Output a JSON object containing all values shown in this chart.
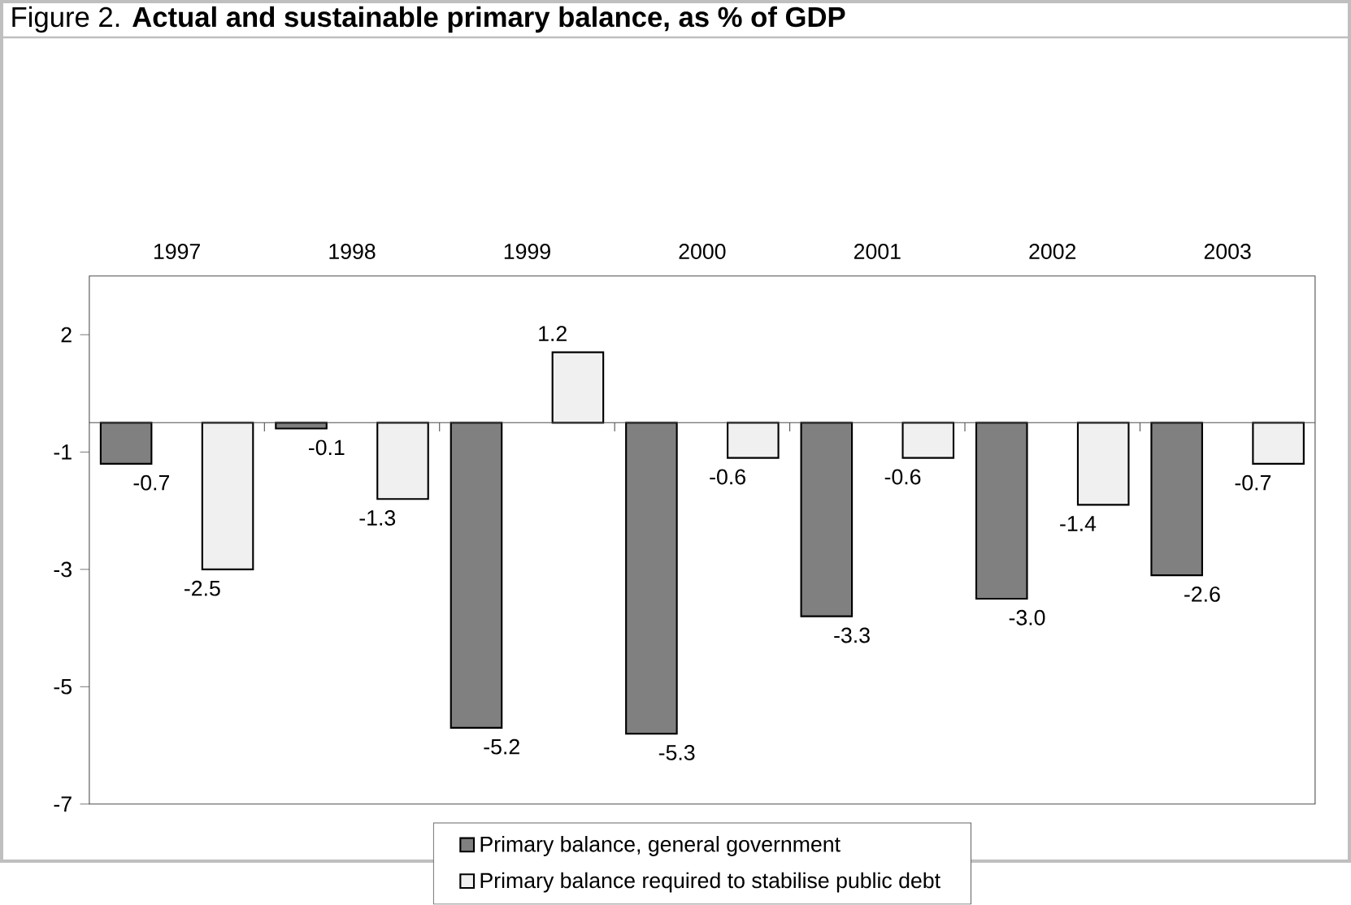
{
  "chart_data": {
    "type": "bar",
    "title": "Figure 2. **Actual and sustainable primary balance, as % of GDP**",
    "categories": [
      "1997",
      "1998",
      "1999",
      "2000",
      "2001",
      "2002",
      "2003"
    ],
    "series": [
      {
        "name": "Primary balance, general government",
        "color": "#808080",
        "values": [
          -0.7,
          -0.1,
          -5.2,
          -5.3,
          -3.3,
          -3.0,
          -2.6
        ],
        "value_labels": [
          "-0.7",
          "-0.1",
          "-5.2",
          "-5.3",
          "-3.3",
          "-3.0",
          "-2.6"
        ]
      },
      {
        "name": "Primary balance required to stabilise public debt",
        "color": "#f0f0f0",
        "values": [
          -2.5,
          -1.3,
          1.2,
          -0.6,
          -0.6,
          -1.4,
          -0.7
        ],
        "value_labels": [
          "-2.5",
          "-1.3",
          "1.2",
          "-0.6",
          "-0.6",
          "-1.4",
          "-0.7"
        ]
      }
    ],
    "ylim": [
      -6.5,
      2.5
    ],
    "yticks": [
      {
        "value": 1.5,
        "label": "2"
      },
      {
        "value": -0.5,
        "label": "-1"
      },
      {
        "value": -2.5,
        "label": "-3"
      },
      {
        "value": -4.5,
        "label": "-5"
      },
      {
        "value": -6.5,
        "label": "-7"
      }
    ],
    "grid": false,
    "legend": "bottom"
  }
}
